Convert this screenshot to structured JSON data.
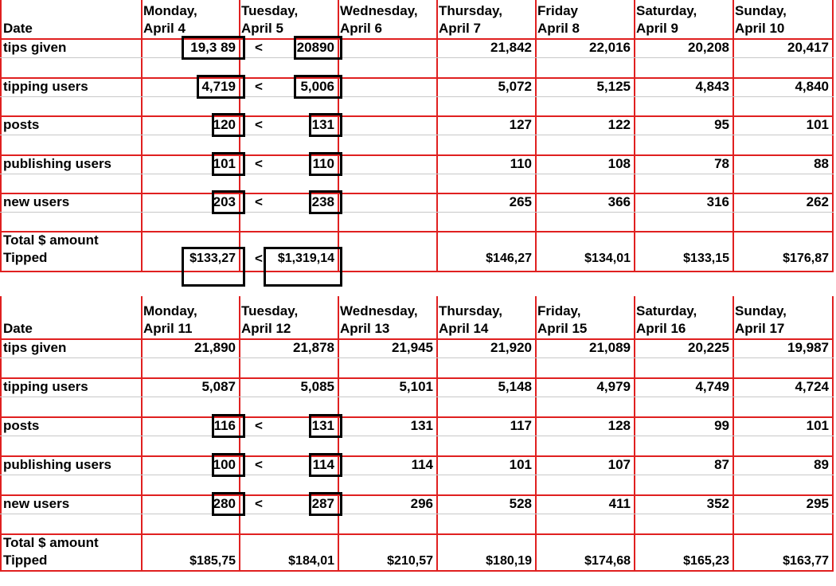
{
  "tables": [
    {
      "header": {
        "corner": "Date",
        "days": [
          [
            "Monday,",
            "April 4"
          ],
          [
            "Tuesday,",
            "April 5"
          ],
          [
            "Wednesday,",
            "April 6"
          ],
          [
            "Thursday,",
            "April 7"
          ],
          [
            "Friday",
            "April 8"
          ],
          [
            "Saturday,",
            "April 9"
          ],
          [
            "Sunday,",
            "April 10"
          ]
        ]
      },
      "rows": [
        {
          "label": [
            "tips given"
          ],
          "values": [
            "19,3 89",
            "20890",
            null,
            "21,842",
            "22,016",
            "20,208",
            "20,417"
          ],
          "comparison": "<",
          "boxed": true
        },
        {
          "label": [
            "tipping users"
          ],
          "values": [
            "4,719",
            "5,006",
            null,
            "5,072",
            "5,125",
            "4,843",
            "4,840"
          ],
          "comparison": "<",
          "boxed": true
        },
        {
          "label": [
            "posts"
          ],
          "values": [
            "120",
            "131",
            null,
            "127",
            "122",
            "95",
            "101"
          ],
          "comparison": "<",
          "boxed": true
        },
        {
          "label": [
            "publishing users"
          ],
          "values": [
            "101",
            "110",
            null,
            "110",
            "108",
            "78",
            "88"
          ],
          "comparison": "<",
          "boxed": true
        },
        {
          "label": [
            "new users"
          ],
          "values": [
            "203",
            "238",
            null,
            "265",
            "366",
            "316",
            "262"
          ],
          "comparison": "<",
          "boxed": true
        },
        {
          "label": [
            "Total $ amount",
            "Tipped"
          ],
          "values": [
            "$133,27",
            "$1,319,14",
            null,
            "$146,27",
            "$134,01",
            "$133,15",
            "$176,87"
          ],
          "comparison": "<",
          "boxed": true
        }
      ]
    },
    {
      "header": {
        "corner": "Date",
        "days": [
          [
            "Monday,",
            "April 11"
          ],
          [
            "Tuesday,",
            "April 12"
          ],
          [
            "Wednesday,",
            "April 13"
          ],
          [
            "Thursday,",
            "April 14"
          ],
          [
            "Friday,",
            "April 15"
          ],
          [
            "Saturday,",
            "April 16"
          ],
          [
            "Sunday,",
            "April 17"
          ]
        ]
      },
      "rows": [
        {
          "label": [
            "tips given"
          ],
          "values": [
            "21,890",
            "21,878",
            "21,945",
            "21,920",
            "21,089",
            "20,225",
            "19,987"
          ]
        },
        {
          "label": [
            "tipping users"
          ],
          "values": [
            "5,087",
            "5,085",
            "5,101",
            "5,148",
            "4,979",
            "4,749",
            "4,724"
          ]
        },
        {
          "label": [
            "posts"
          ],
          "values": [
            "116",
            "131",
            "131",
            "117",
            "128",
            "99",
            "101"
          ],
          "comparison": "<",
          "boxed": true
        },
        {
          "label": [
            "publishing users"
          ],
          "values": [
            "100",
            "114",
            "114",
            "101",
            "107",
            "87",
            "89"
          ],
          "comparison": "<",
          "boxed": true
        },
        {
          "label": [
            "new users"
          ],
          "values": [
            "280",
            "287",
            "296",
            "528",
            "411",
            "352",
            "295"
          ],
          "comparison": "<",
          "boxed": true
        },
        {
          "label": [
            "Total $ amount",
            "Tipped"
          ],
          "values": [
            "$185,75",
            "$184,01",
            "$210,57",
            "$180,19",
            "$174,68",
            "$165,23",
            "$163,77"
          ]
        }
      ]
    }
  ]
}
